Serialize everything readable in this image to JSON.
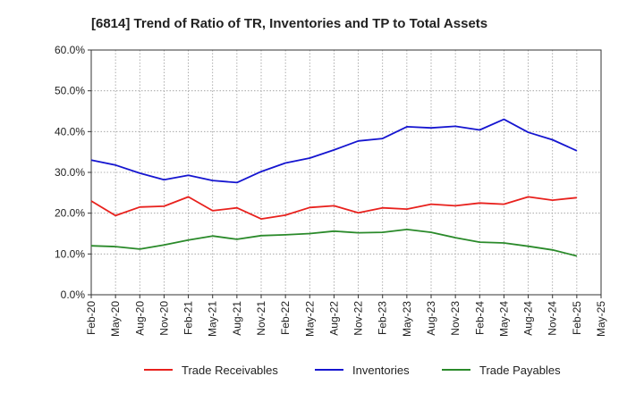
{
  "chart_data": {
    "type": "line",
    "title": "[6814]  Trend of Ratio of TR, Inventories and TP to Total Assets",
    "xlabel": "",
    "ylabel": "",
    "ylim": [
      0,
      60
    ],
    "y_ticks": [
      "0.0%",
      "10.0%",
      "20.0%",
      "30.0%",
      "40.0%",
      "50.0%",
      "60.0%"
    ],
    "y_tick_values": [
      0,
      10,
      20,
      30,
      40,
      50,
      60
    ],
    "x_tick_labels": [
      "Feb-20",
      "May-20",
      "Aug-20",
      "Nov-20",
      "Feb-21",
      "May-21",
      "Aug-21",
      "Nov-21",
      "Feb-22",
      "May-22",
      "Aug-22",
      "Nov-22",
      "Feb-23",
      "May-23",
      "Aug-23",
      "Nov-23",
      "Feb-24",
      "May-24",
      "Aug-24",
      "Nov-24",
      "Feb-25",
      "May-25"
    ],
    "x": [
      "Feb-20",
      "May-20",
      "Aug-20",
      "Nov-20",
      "Feb-21",
      "May-21",
      "Aug-21",
      "Nov-21",
      "Feb-22",
      "May-22",
      "Aug-22",
      "Nov-22",
      "Feb-23",
      "May-23",
      "Aug-23",
      "Nov-23",
      "Feb-24",
      "May-24",
      "Aug-24",
      "Nov-24",
      "Feb-25"
    ],
    "grid": true,
    "legend_position": "bottom",
    "series": [
      {
        "name": "Trade Receivables",
        "color": "#e8211d",
        "values": [
          23.0,
          19.4,
          21.5,
          21.7,
          24.0,
          20.6,
          21.3,
          18.6,
          19.5,
          21.4,
          21.8,
          20.1,
          21.3,
          21.0,
          22.2,
          21.8,
          22.5,
          22.2,
          24.0,
          23.2,
          23.8
        ]
      },
      {
        "name": "Inventories",
        "color": "#1515d0",
        "values": [
          33.0,
          31.8,
          29.8,
          28.2,
          29.3,
          28.0,
          27.5,
          30.2,
          32.3,
          33.5,
          35.5,
          37.7,
          38.3,
          41.2,
          40.9,
          41.3,
          40.4,
          43.0,
          39.8,
          38.0,
          35.3
        ]
      },
      {
        "name": "Trade Payables",
        "color": "#2a8a2a",
        "values": [
          12.0,
          11.8,
          11.2,
          12.2,
          13.4,
          14.4,
          13.6,
          14.5,
          14.7,
          15.0,
          15.6,
          15.2,
          15.3,
          16.0,
          15.3,
          14.0,
          12.9,
          12.7,
          11.9,
          11.0,
          9.5
        ]
      }
    ]
  }
}
